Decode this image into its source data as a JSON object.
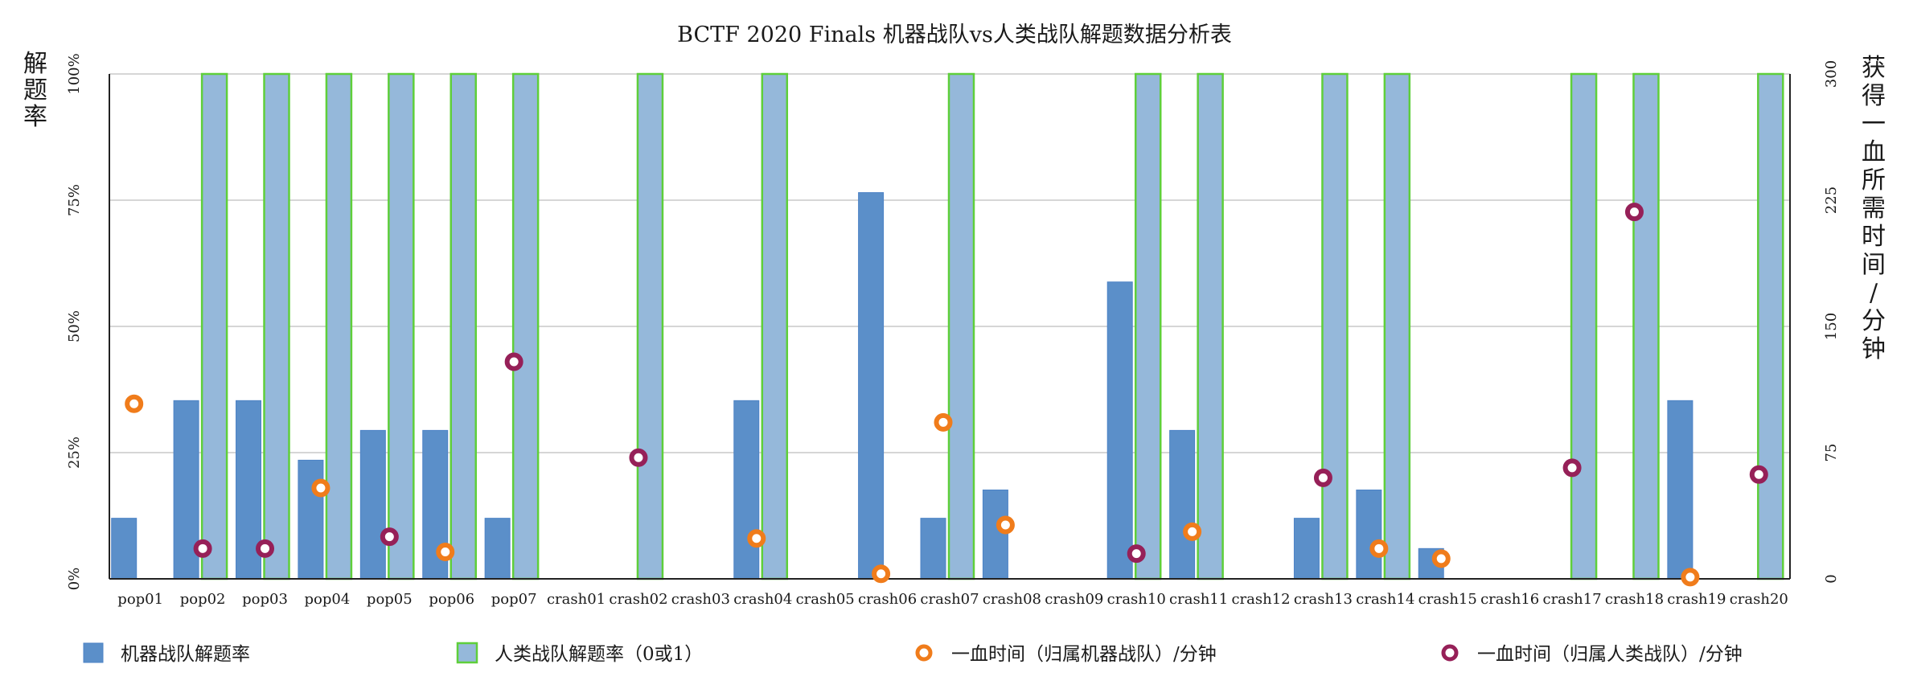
{
  "chart_data": {
    "type": "bar",
    "title": "BCTF 2020 Finals 机器战队vs人类战队解题数据分析表",
    "ylabel": "解题率",
    "y2label": "获得一血所需时间/分钟",
    "ylim": [
      0,
      100
    ],
    "y2lim": [
      0,
      300
    ],
    "yticks": [
      "0%",
      "25%",
      "50%",
      "75%",
      "100%"
    ],
    "y2ticks": [
      "0",
      "75",
      "150",
      "225",
      "300"
    ],
    "grid": true,
    "legend_position": "bottom",
    "categories": [
      "pop01",
      "pop02",
      "pop03",
      "pop04",
      "pop05",
      "pop06",
      "pop07",
      "crash01",
      "crash02",
      "crash03",
      "crash04",
      "crash05",
      "crash06",
      "crash07",
      "crash08",
      "crash09",
      "crash10",
      "crash11",
      "crash12",
      "crash13",
      "crash14",
      "crash15",
      "crash16",
      "crash17",
      "crash18",
      "crash19",
      "crash20"
    ],
    "series": [
      {
        "name": "机器战队解题率",
        "kind": "bar",
        "axis": "left",
        "color": "#5b8fc9",
        "values": [
          12,
          35.3,
          35.3,
          23.5,
          29.4,
          29.4,
          12,
          0,
          0,
          0,
          35.3,
          0,
          76.5,
          12,
          17.6,
          0,
          58.8,
          29.4,
          0,
          12,
          17.6,
          6,
          0,
          0,
          0,
          35.3,
          0
        ]
      },
      {
        "name": "人类战队解题率（0或1）",
        "kind": "bar",
        "axis": "left",
        "color": "#95b8da",
        "border": "#5fcf3a",
        "values": [
          0,
          100,
          100,
          100,
          100,
          100,
          100,
          0,
          100,
          0,
          100,
          0,
          0,
          100,
          0,
          0,
          100,
          100,
          0,
          100,
          100,
          0,
          0,
          100,
          100,
          0,
          100
        ]
      },
      {
        "name": "一血时间（归属机器战队）/分钟",
        "kind": "scatter",
        "axis": "right",
        "color": "#f07c1b",
        "points": [
          [
            0,
            104
          ],
          [
            3,
            54
          ],
          [
            5,
            16
          ],
          [
            10,
            24
          ],
          [
            12,
            3
          ],
          [
            13,
            93
          ],
          [
            14,
            32
          ],
          [
            17,
            28
          ],
          [
            20,
            18
          ],
          [
            21,
            12
          ],
          [
            25,
            1
          ]
        ]
      },
      {
        "name": "一血时间（归属人类战队）/分钟",
        "kind": "scatter",
        "axis": "right",
        "color": "#962058",
        "points": [
          [
            1,
            18
          ],
          [
            2,
            18
          ],
          [
            4,
            25
          ],
          [
            6,
            129
          ],
          [
            8,
            72
          ],
          [
            16,
            15
          ],
          [
            19,
            60
          ],
          [
            23,
            66
          ],
          [
            24,
            218
          ],
          [
            26,
            62
          ]
        ]
      }
    ]
  }
}
